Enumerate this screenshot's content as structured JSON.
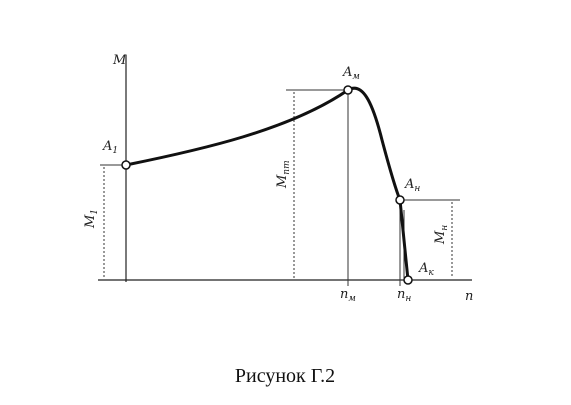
{
  "diagram": {
    "labels": [
      {
        "main": "M",
        "sub": ""
      },
      {
        "main": "n",
        "sub": ""
      },
      {
        "main": "A",
        "sub": "1"
      },
      {
        "main": "A",
        "sub": "м"
      },
      {
        "main": "A",
        "sub": "н"
      },
      {
        "main": "A",
        "sub": "к"
      },
      {
        "main": "M",
        "sub": "1"
      },
      {
        "main": "M",
        "sub": "пт"
      },
      {
        "main": "M",
        "sub": "н"
      },
      {
        "main": "n",
        "sub": "м"
      },
      {
        "main": "n",
        "sub": "н"
      }
    ],
    "caption": "Рисунок Г.2"
  }
}
